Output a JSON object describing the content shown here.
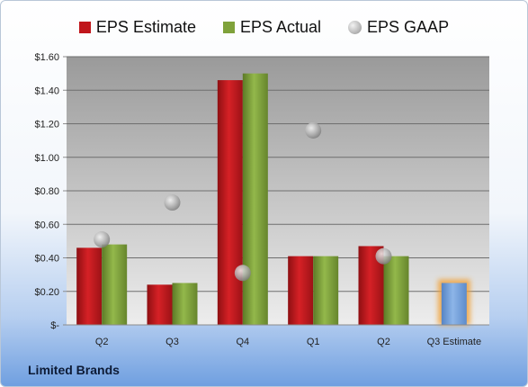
{
  "legend": {
    "estimate": "EPS Estimate",
    "actual": "EPS Actual",
    "gaap": "EPS GAAP"
  },
  "company": "Limited Brands",
  "colors": {
    "estimate": "#c0161b",
    "actual": "#7fa23a",
    "gaap": "#a9a9a9",
    "forecast": "#6f9fd8",
    "forecast_glow": "#f0a23a"
  },
  "chart_data": {
    "type": "bar",
    "categories": [
      "Q2",
      "Q3",
      "Q4",
      "Q1",
      "Q2",
      "Q3 Estimate"
    ],
    "series": [
      {
        "name": "EPS Estimate",
        "values": [
          0.46,
          0.24,
          1.46,
          0.41,
          0.47,
          null
        ]
      },
      {
        "name": "EPS Actual",
        "values": [
          0.48,
          0.25,
          1.5,
          0.41,
          0.41,
          null
        ]
      },
      {
        "name": "EPS GAAP",
        "type": "scatter",
        "values": [
          0.51,
          0.73,
          0.31,
          1.16,
          0.41,
          null
        ]
      },
      {
        "name": "Q3 Estimate",
        "values": [
          null,
          null,
          null,
          null,
          null,
          0.25
        ]
      }
    ],
    "ylim": [
      0,
      1.6
    ],
    "yticks": [
      0,
      0.2,
      0.4,
      0.6,
      0.8,
      1.0,
      1.2,
      1.4,
      1.6
    ],
    "ytick_labels": [
      "$-",
      "$0.20",
      "$0.40",
      "$0.60",
      "$0.80",
      "$1.00",
      "$1.20",
      "$1.40",
      "$1.60"
    ],
    "legend_position": "top",
    "grid": true
  }
}
